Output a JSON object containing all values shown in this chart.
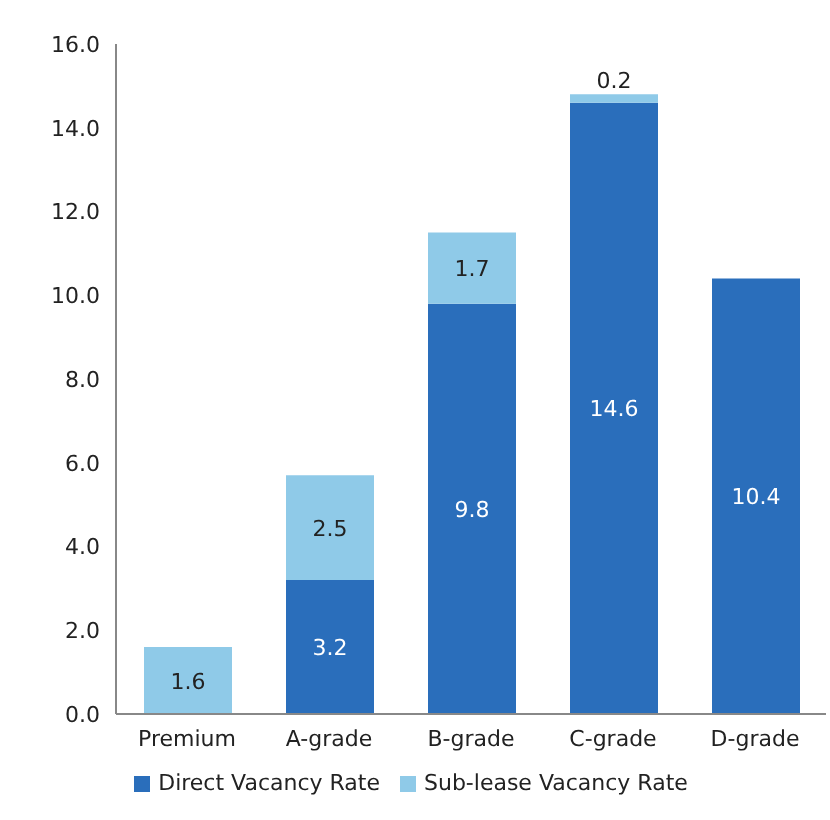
{
  "chart_data": {
    "type": "bar",
    "stacked": true,
    "categories": [
      "Premium",
      "A-grade",
      "B-grade",
      "C-grade",
      "D-grade"
    ],
    "series": [
      {
        "name": "Direct Vacancy Rate",
        "color": "#2a6ebb",
        "values": [
          0,
          3.2,
          9.8,
          14.6,
          10.4
        ],
        "value_labels": [
          null,
          "3.2",
          "9.8",
          "14.6",
          "10.4"
        ]
      },
      {
        "name": "Sub-lease Vacancy Rate",
        "color": "#8fcae8",
        "values": [
          1.6,
          2.5,
          1.7,
          0.2,
          0
        ],
        "value_labels": [
          "1.6",
          "2.5",
          "1.7",
          "0.2",
          null
        ]
      }
    ],
    "ylim": [
      0,
      16
    ],
    "yticks": [
      {
        "value": 0,
        "label": "0.0"
      },
      {
        "value": 2,
        "label": "2.0"
      },
      {
        "value": 4,
        "label": "4.0"
      },
      {
        "value": 6,
        "label": "6.0"
      },
      {
        "value": 8,
        "label": "8.0"
      },
      {
        "value": 10,
        "label": "10.0"
      },
      {
        "value": 12,
        "label": "12.0"
      },
      {
        "value": 14,
        "label": "14.0"
      },
      {
        "value": 16,
        "label": "16.0"
      }
    ],
    "legend": "bottom"
  }
}
